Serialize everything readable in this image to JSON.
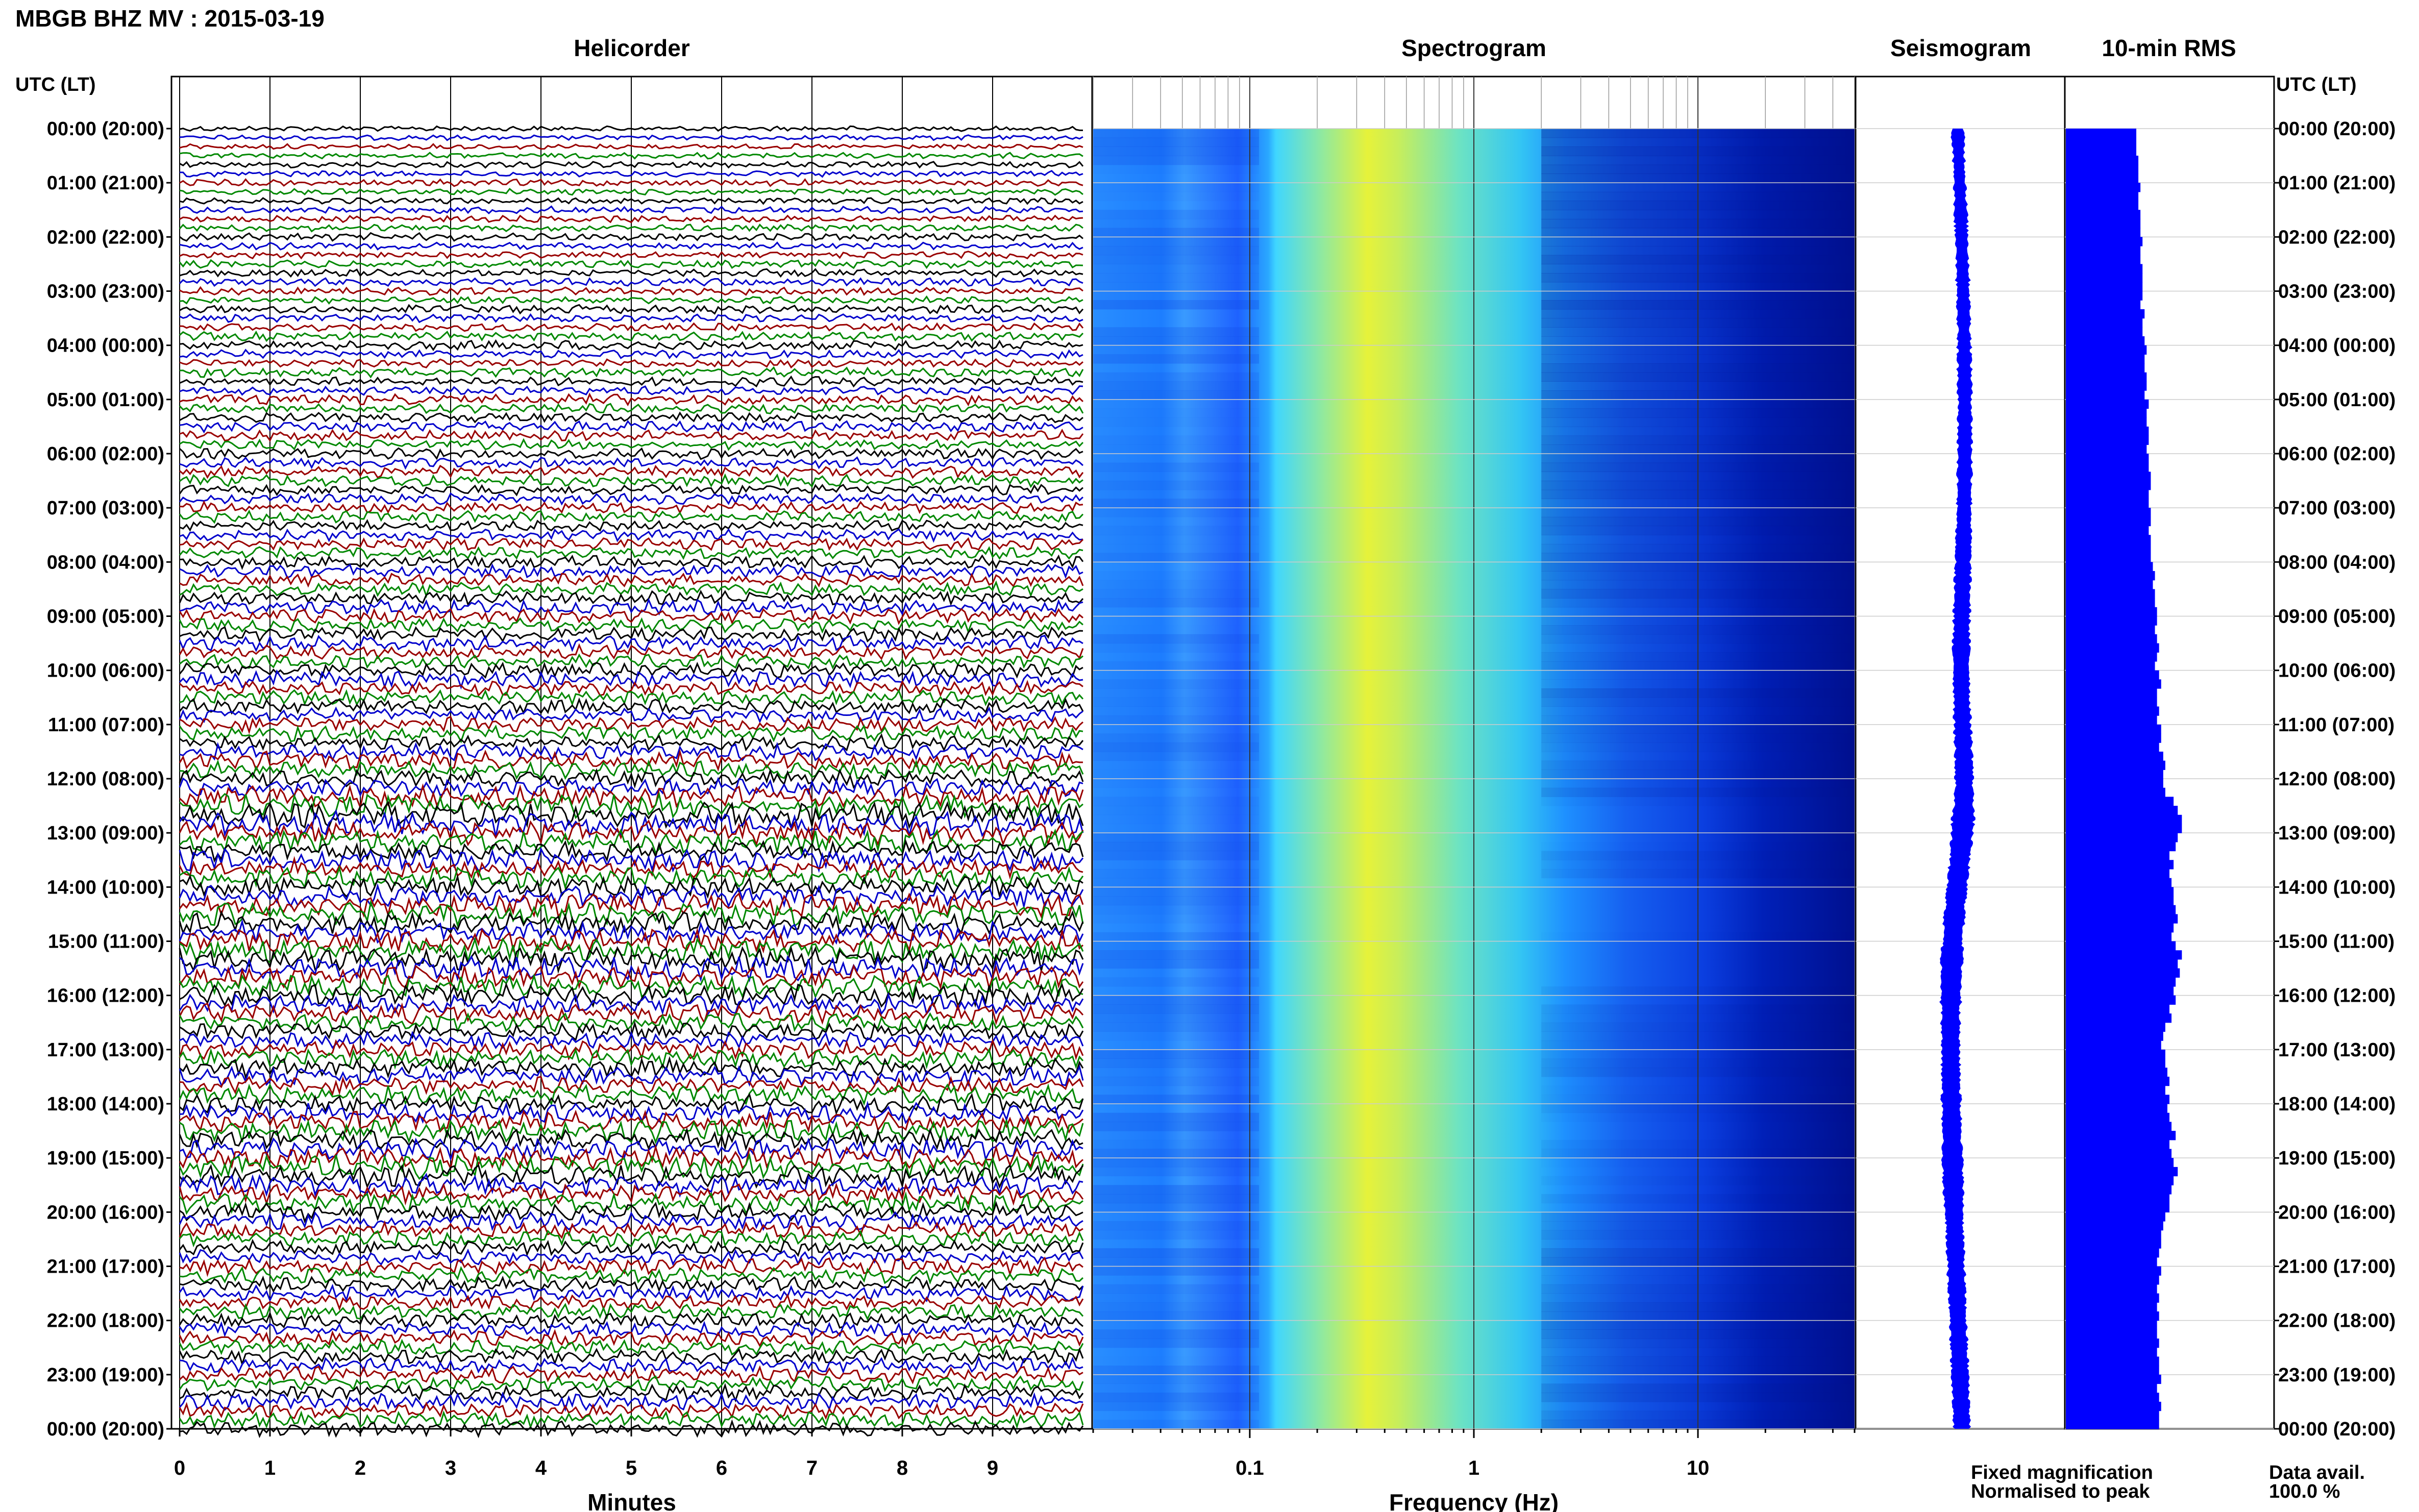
{
  "header": {
    "title": "MBGB BHZ MV : 2015-03-19"
  },
  "panels": {
    "helicorder": "Helicorder",
    "spectrogram": "Spectrogram",
    "seismogram": "Seismogram",
    "rms": "10-min RMS"
  },
  "axis_labels": {
    "left_time": "UTC (LT)",
    "right_time": "UTC (LT)",
    "helicorder_x": "Minutes",
    "spectrogram_x": "Frequency (Hz)"
  },
  "footer": {
    "fixed": "Fixed magnification",
    "normalised": "Normalised to peak",
    "data_avail_label": "Data avail.",
    "data_avail_value": "100.0 %"
  },
  "colors": {
    "fixed": "#0000ff",
    "normalised": "#ff0000",
    "trace_cycle": [
      "#000000",
      "#0000cc",
      "#990000",
      "#008800"
    ],
    "seismogram": "#0000ff",
    "rms_fill": "#0000ff"
  },
  "chart_data": {
    "type": "helicorder-spectrogram-composite",
    "time_ticks": [
      "00:00 (20:00)",
      "01:00 (21:00)",
      "02:00 (22:00)",
      "03:00 (23:00)",
      "04:00 (00:00)",
      "05:00 (01:00)",
      "06:00 (02:00)",
      "07:00 (03:00)",
      "08:00 (04:00)",
      "09:00 (05:00)",
      "10:00 (06:00)",
      "11:00 (07:00)",
      "12:00 (08:00)",
      "13:00 (09:00)",
      "14:00 (10:00)",
      "15:00 (11:00)",
      "16:00 (12:00)",
      "17:00 (13:00)",
      "18:00 (14:00)",
      "19:00 (15:00)",
      "20:00 (16:00)",
      "21:00 (17:00)",
      "22:00 (18:00)",
      "23:00 (19:00)",
      "00:00 (20:00)"
    ],
    "helicorder": {
      "x_range": [
        0,
        10
      ],
      "x_ticks": [
        "0",
        "1",
        "2",
        "3",
        "4",
        "5",
        "6",
        "7",
        "8",
        "9"
      ],
      "lines_per_hour": 6,
      "total_lines": 144
    },
    "spectrogram": {
      "x_scale": "log",
      "x_range": [
        0.02,
        50
      ],
      "x_tick_labels": [
        "0.1",
        "1",
        "10"
      ],
      "colormap": [
        "#00008b",
        "#0000ff",
        "#1e90ff",
        "#00e5ee",
        "#7fffd4",
        "#ffff00"
      ]
    },
    "rms_10min": [
      0.34,
      0.34,
      0.34,
      0.35,
      0.35,
      0.35,
      0.36,
      0.35,
      0.35,
      0.36,
      0.36,
      0.36,
      0.37,
      0.36,
      0.36,
      0.37,
      0.37,
      0.37,
      0.37,
      0.36,
      0.38,
      0.37,
      0.37,
      0.38,
      0.39,
      0.38,
      0.38,
      0.39,
      0.39,
      0.38,
      0.4,
      0.39,
      0.39,
      0.4,
      0.4,
      0.39,
      0.4,
      0.4,
      0.41,
      0.41,
      0.4,
      0.4,
      0.41,
      0.41,
      0.4,
      0.41,
      0.41,
      0.41,
      0.42,
      0.43,
      0.42,
      0.43,
      0.43,
      0.44,
      0.44,
      0.43,
      0.44,
      0.45,
      0.44,
      0.43,
      0.45,
      0.46,
      0.44,
      0.44,
      0.45,
      0.44,
      0.46,
      0.46,
      0.45,
      0.47,
      0.48,
      0.47,
      0.47,
      0.48,
      0.52,
      0.54,
      0.56,
      0.56,
      0.54,
      0.53,
      0.5,
      0.52,
      0.5,
      0.51,
      0.52,
      0.52,
      0.53,
      0.54,
      0.52,
      0.51,
      0.53,
      0.56,
      0.54,
      0.55,
      0.53,
      0.52,
      0.53,
      0.5,
      0.51,
      0.48,
      0.47,
      0.46,
      0.48,
      0.48,
      0.49,
      0.5,
      0.48,
      0.5,
      0.49,
      0.5,
      0.51,
      0.53,
      0.5,
      0.51,
      0.52,
      0.54,
      0.52,
      0.51,
      0.5,
      0.5,
      0.48,
      0.47,
      0.46,
      0.46,
      0.45,
      0.44,
      0.46,
      0.45,
      0.44,
      0.45,
      0.44,
      0.45,
      0.44,
      0.44,
      0.45,
      0.44,
      0.45,
      0.45,
      0.46,
      0.44,
      0.45,
      0.46,
      0.45,
      0.45
    ]
  }
}
